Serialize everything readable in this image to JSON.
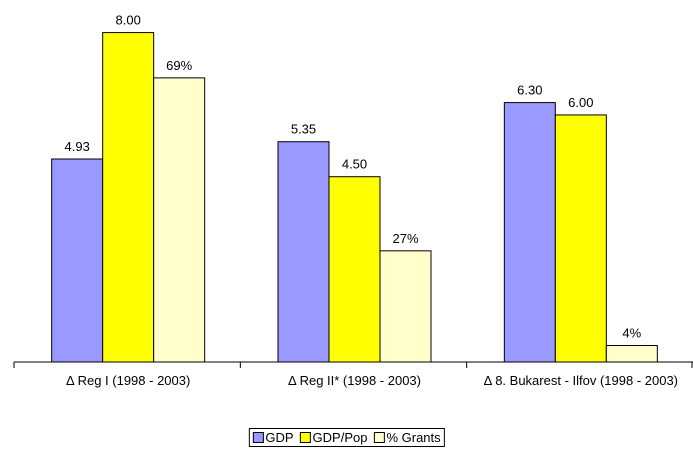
{
  "chart_data": {
    "type": "bar",
    "categories": [
      "Δ Reg I (1998 - 2003)",
      "Δ Reg II* (1998 - 2003)",
      "Δ 8. Bukarest - Ilfov (1998 - 2003)"
    ],
    "ylim": [
      0,
      8.5
    ],
    "y2lim": [
      0,
      85
    ],
    "series": [
      {
        "name": "GDP",
        "color": "#9999ff",
        "values": [
          4.93,
          5.35,
          6.3
        ],
        "value_labels": [
          "4.93",
          "5.35",
          "6.30"
        ]
      },
      {
        "name": "GDP/Pop",
        "color": "#ffff00",
        "values": [
          8.0,
          4.5,
          6.0
        ],
        "value_labels": [
          "8.00",
          "4.50",
          "6.00"
        ]
      },
      {
        "name": "% Grants",
        "color": "#ffffcc",
        "axis": "y2",
        "values": [
          69,
          27,
          4
        ],
        "value_labels": [
          "69%",
          "27%",
          "4%"
        ]
      }
    ]
  }
}
